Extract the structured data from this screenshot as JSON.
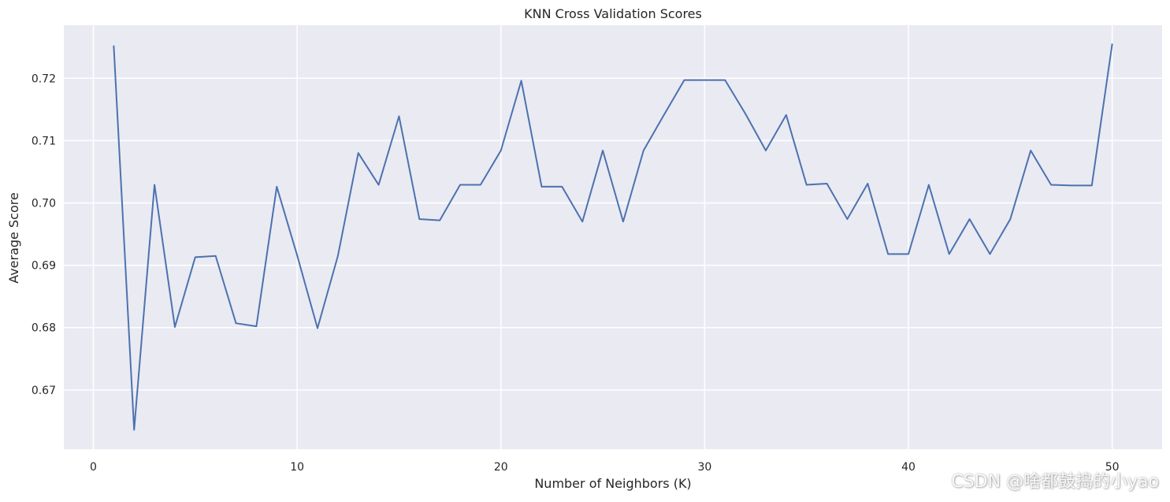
{
  "chart_data": {
    "type": "line",
    "title": "KNN Cross Validation Scores",
    "xlabel": "Number of Neighbors (K)",
    "ylabel": "Average Score",
    "xlim": [
      -1.45,
      52.45
    ],
    "ylim": [
      0.6605,
      0.7285
    ],
    "xticks": [
      0,
      10,
      20,
      30,
      40,
      50
    ],
    "xtick_labels": [
      "0",
      "10",
      "20",
      "30",
      "40",
      "50"
    ],
    "yticks": [
      0.67,
      0.68,
      0.69,
      0.7,
      0.71,
      0.72
    ],
    "ytick_labels": [
      "0.67",
      "0.68",
      "0.69",
      "0.70",
      "0.71",
      "0.72"
    ],
    "grid": true,
    "legend": null,
    "colors": {
      "background": "#eaeaf2",
      "grid": "#ffffff",
      "line": "#4c72b0"
    },
    "series": [
      {
        "x": [
          1,
          2,
          3,
          4,
          5,
          6,
          7,
          8,
          9,
          10,
          11,
          12,
          13,
          14,
          15,
          16,
          17,
          18,
          19,
          20,
          21,
          22,
          23,
          24,
          25,
          26,
          27,
          28,
          29,
          30,
          31,
          32,
          33,
          34,
          35,
          36,
          37,
          38,
          39,
          40,
          41,
          42,
          43,
          44,
          45,
          46,
          47,
          48,
          49,
          50
        ],
        "values": [
          0.7252,
          0.6636,
          0.7029,
          0.6801,
          0.6913,
          0.6915,
          0.6807,
          0.6802,
          0.7026,
          0.6916,
          0.6799,
          0.6915,
          0.708,
          0.7029,
          0.7139,
          0.6974,
          0.6972,
          0.7029,
          0.7029,
          0.7084,
          0.7196,
          0.7026,
          0.7026,
          0.697,
          0.7084,
          0.697,
          0.7084,
          0.7141,
          0.7197,
          0.7197,
          0.7197,
          0.7143,
          0.7084,
          0.7141,
          0.7029,
          0.7031,
          0.6974,
          0.7031,
          0.6918,
          0.6918,
          0.7029,
          0.6918,
          0.6974,
          0.6918,
          0.6974,
          0.7084,
          0.7029,
          0.7028,
          0.7028,
          0.7255
        ]
      }
    ]
  },
  "watermark": "CSDN @啥都鼓捣的小yao"
}
